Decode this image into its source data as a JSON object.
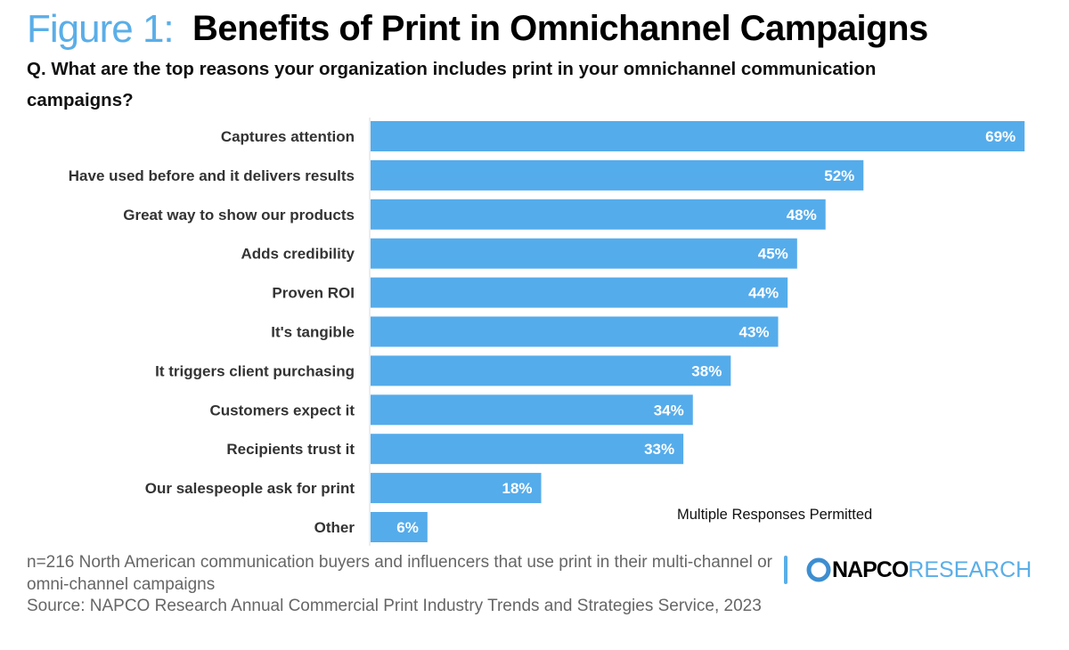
{
  "header": {
    "figure_label": "Figure 1:",
    "title": "Benefits of Print in Omnichannel Campaigns",
    "question": "Q. What are the top reasons your organization includes print in your omnichannel communication campaigns?"
  },
  "chart_data": {
    "type": "bar",
    "orientation": "horizontal",
    "title": "Benefits of Print in Omnichannel Campaigns",
    "categories": [
      "Captures attention",
      "Have used before and it delivers results",
      "Great way to show our products",
      "Adds credibility",
      "Proven ROI",
      "It's tangible",
      "It triggers client purchasing",
      "Customers expect it",
      "Recipients trust it",
      "Our salespeople ask for print",
      "Other"
    ],
    "values": [
      69,
      52,
      48,
      45,
      44,
      43,
      38,
      34,
      33,
      18,
      6
    ],
    "data_labels": [
      "69%",
      "52%",
      "48%",
      "45%",
      "44%",
      "43%",
      "38%",
      "34%",
      "33%",
      "18%",
      "6%"
    ],
    "unit": "%",
    "bar_color": "#55aceb",
    "grid": false,
    "annotation": "Multiple Responses Permitted"
  },
  "footer": {
    "sample_note": "n=216 North American communication buyers and influencers that use print in their multi-channel or omni-channel campaigns",
    "source": "Source: NAPCO Research Annual Commercial Print Industry Trends and Strategies Service, 2023"
  },
  "logo": {
    "part1": "NAPCO",
    "part2": "RESEARCH",
    "accent": "#5aaee8"
  }
}
